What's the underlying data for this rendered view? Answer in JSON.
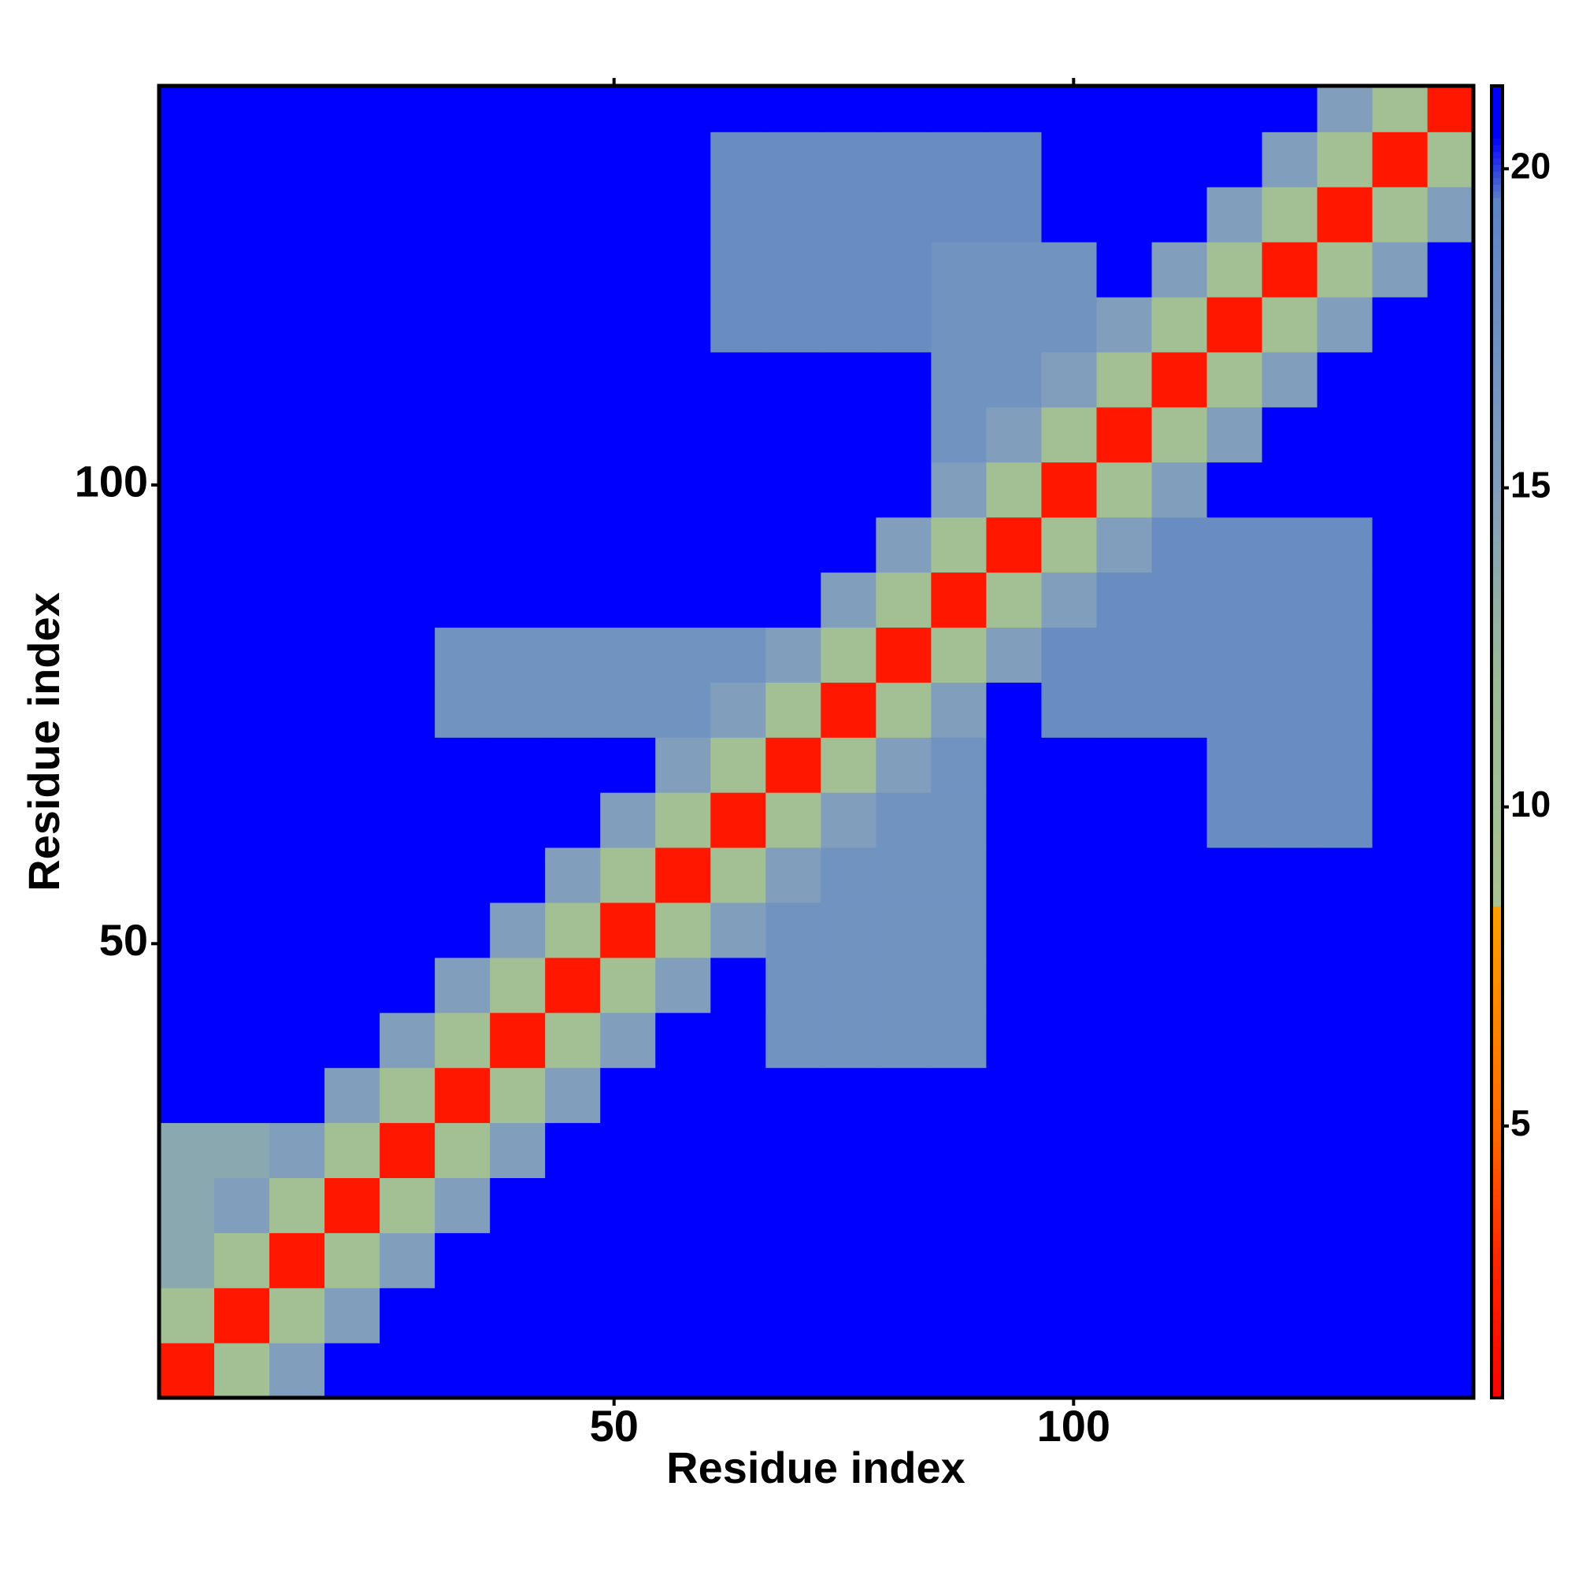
{
  "chart_data": {
    "type": "heatmap",
    "x_label": "Residue index",
    "y_label": "Residue index",
    "xlim": [
      0.5,
      143.5
    ],
    "ylim": [
      0.5,
      143.5
    ],
    "xticks": [
      50,
      100
    ],
    "yticks": [
      50,
      100
    ],
    "x_bins": [
      0.5,
      6.5,
      12.5,
      18.5,
      24.5,
      30.5,
      36.5,
      42.5,
      48.5,
      54.5,
      60.5,
      66.5,
      72.5,
      78.5,
      84.5,
      90.5,
      96.5,
      102.5,
      108.5,
      114.5,
      120.5,
      126.5,
      132.5,
      138.5,
      144.5
    ],
    "y_bins": [
      0.5,
      6.5,
      12.5,
      18.5,
      24.5,
      30.5,
      36.5,
      42.5,
      48.5,
      54.5,
      60.5,
      66.5,
      72.5,
      78.5,
      84.5,
      90.5,
      96.5,
      102.5,
      108.5,
      114.5,
      120.5,
      126.5,
      132.5,
      138.5,
      144.5
    ],
    "z": [
      [
        2,
        10,
        15,
        21,
        21,
        21,
        21,
        21,
        21,
        21,
        21,
        21,
        21,
        21,
        21,
        21,
        21,
        21,
        21,
        21,
        21,
        21,
        21,
        21
      ],
      [
        10,
        2,
        10,
        15,
        21,
        21,
        21,
        21,
        21,
        21,
        21,
        21,
        21,
        21,
        21,
        21,
        21,
        21,
        21,
        21,
        21,
        21,
        21,
        21
      ],
      [
        14,
        10,
        2,
        10,
        15,
        21,
        21,
        21,
        21,
        21,
        21,
        21,
        21,
        21,
        21,
        21,
        21,
        21,
        21,
        21,
        21,
        21,
        21,
        21
      ],
      [
        14,
        15,
        10,
        2,
        10,
        15,
        21,
        21,
        21,
        21,
        21,
        21,
        21,
        21,
        21,
        21,
        21,
        21,
        21,
        21,
        21,
        21,
        21,
        21
      ],
      [
        14,
        14,
        15,
        10,
        2,
        10,
        15,
        21,
        21,
        21,
        21,
        21,
        21,
        21,
        21,
        21,
        21,
        21,
        21,
        21,
        21,
        21,
        21,
        21
      ],
      [
        21,
        21,
        21,
        15,
        10,
        2,
        10,
        15,
        21,
        21,
        21,
        21,
        21,
        21,
        21,
        21,
        21,
        21,
        21,
        21,
        21,
        21,
        21,
        21
      ],
      [
        21,
        21,
        21,
        21,
        15,
        10,
        2,
        10,
        15,
        21,
        21,
        17,
        17,
        17,
        17,
        21,
        21,
        21,
        21,
        21,
        21,
        21,
        21,
        21
      ],
      [
        21,
        21,
        21,
        21,
        21,
        15,
        10,
        2,
        10,
        15,
        21,
        17,
        17,
        17,
        17,
        21,
        21,
        21,
        21,
        21,
        21,
        21,
        21,
        21
      ],
      [
        21,
        21,
        21,
        21,
        21,
        21,
        15,
        10,
        2,
        10,
        15,
        17,
        17,
        17,
        17,
        21,
        21,
        21,
        21,
        21,
        21,
        21,
        21,
        21
      ],
      [
        21,
        21,
        21,
        21,
        21,
        21,
        21,
        15,
        10,
        2,
        10,
        15,
        17,
        17,
        17,
        21,
        21,
        21,
        21,
        21,
        21,
        21,
        21,
        21
      ],
      [
        21,
        21,
        21,
        21,
        21,
        21,
        21,
        21,
        15,
        10,
        2,
        10,
        15,
        17,
        17,
        21,
        21,
        21,
        21,
        18,
        18,
        18,
        21,
        21
      ],
      [
        21,
        21,
        21,
        21,
        21,
        21,
        21,
        21,
        21,
        15,
        10,
        2,
        10,
        15,
        17,
        21,
        21,
        21,
        21,
        18,
        18,
        18,
        21,
        21
      ],
      [
        21,
        21,
        21,
        21,
        21,
        17,
        17,
        17,
        17,
        17,
        15,
        10,
        2,
        10,
        15,
        21,
        18,
        18,
        18,
        18,
        18,
        18,
        21,
        21
      ],
      [
        21,
        21,
        21,
        21,
        21,
        17,
        17,
        17,
        17,
        17,
        17,
        15,
        10,
        2,
        10,
        15,
        18,
        18,
        18,
        18,
        18,
        18,
        21,
        21
      ],
      [
        21,
        21,
        21,
        21,
        21,
        21,
        21,
        21,
        21,
        21,
        21,
        21,
        15,
        10,
        2,
        10,
        15,
        18,
        18,
        18,
        18,
        18,
        21,
        21
      ],
      [
        21,
        21,
        21,
        21,
        21,
        21,
        21,
        21,
        21,
        21,
        21,
        21,
        21,
        15,
        10,
        2,
        10,
        15,
        18,
        18,
        18,
        18,
        21,
        21
      ],
      [
        21,
        21,
        21,
        21,
        21,
        21,
        21,
        21,
        21,
        21,
        21,
        21,
        21,
        21,
        15,
        10,
        2,
        10,
        15,
        21,
        21,
        21,
        21,
        21
      ],
      [
        21,
        21,
        21,
        21,
        21,
        21,
        21,
        21,
        21,
        21,
        21,
        21,
        21,
        21,
        17,
        15,
        10,
        2,
        10,
        15,
        21,
        21,
        21,
        21
      ],
      [
        21,
        21,
        21,
        21,
        21,
        21,
        21,
        21,
        21,
        21,
        21,
        21,
        21,
        21,
        17,
        17,
        15,
        10,
        2,
        10,
        15,
        21,
        21,
        21
      ],
      [
        21,
        21,
        21,
        21,
        21,
        21,
        21,
        21,
        21,
        21,
        18,
        18,
        18,
        18,
        17,
        17,
        17,
        15,
        10,
        2,
        10,
        15,
        21,
        21
      ],
      [
        21,
        21,
        21,
        21,
        21,
        21,
        21,
        21,
        21,
        21,
        18,
        18,
        18,
        18,
        17,
        17,
        17,
        21,
        15,
        10,
        2,
        10,
        15,
        21
      ],
      [
        21,
        21,
        21,
        21,
        21,
        21,
        21,
        21,
        21,
        21,
        18,
        18,
        18,
        18,
        18,
        18,
        21,
        21,
        21,
        15,
        10,
        2,
        10,
        15
      ],
      [
        21,
        21,
        21,
        21,
        21,
        21,
        21,
        21,
        21,
        21,
        18,
        18,
        18,
        18,
        18,
        18,
        21,
        21,
        21,
        21,
        15,
        10,
        2,
        10
      ],
      [
        21,
        21,
        21,
        21,
        21,
        21,
        21,
        21,
        21,
        21,
        21,
        21,
        21,
        21,
        21,
        21,
        21,
        21,
        21,
        21,
        21,
        15,
        10,
        2
      ]
    ],
    "zlim": [
      0.74,
      21.3
    ],
    "zticks": [
      5,
      10,
      15,
      20
    ],
    "colorscale": [
      [
        0.74,
        "#ff0000"
      ],
      [
        3,
        "#ff2a00"
      ],
      [
        5,
        "#ff6a00"
      ],
      [
        8.4,
        "#ffa000"
      ],
      [
        8.5,
        "#a9c292"
      ],
      [
        12,
        "#9cba96"
      ],
      [
        15,
        "#819fbc"
      ],
      [
        19.5,
        "#5e84c4"
      ],
      [
        20.5,
        "#0000ff"
      ],
      [
        21.3,
        "#0000ff"
      ]
    ]
  }
}
